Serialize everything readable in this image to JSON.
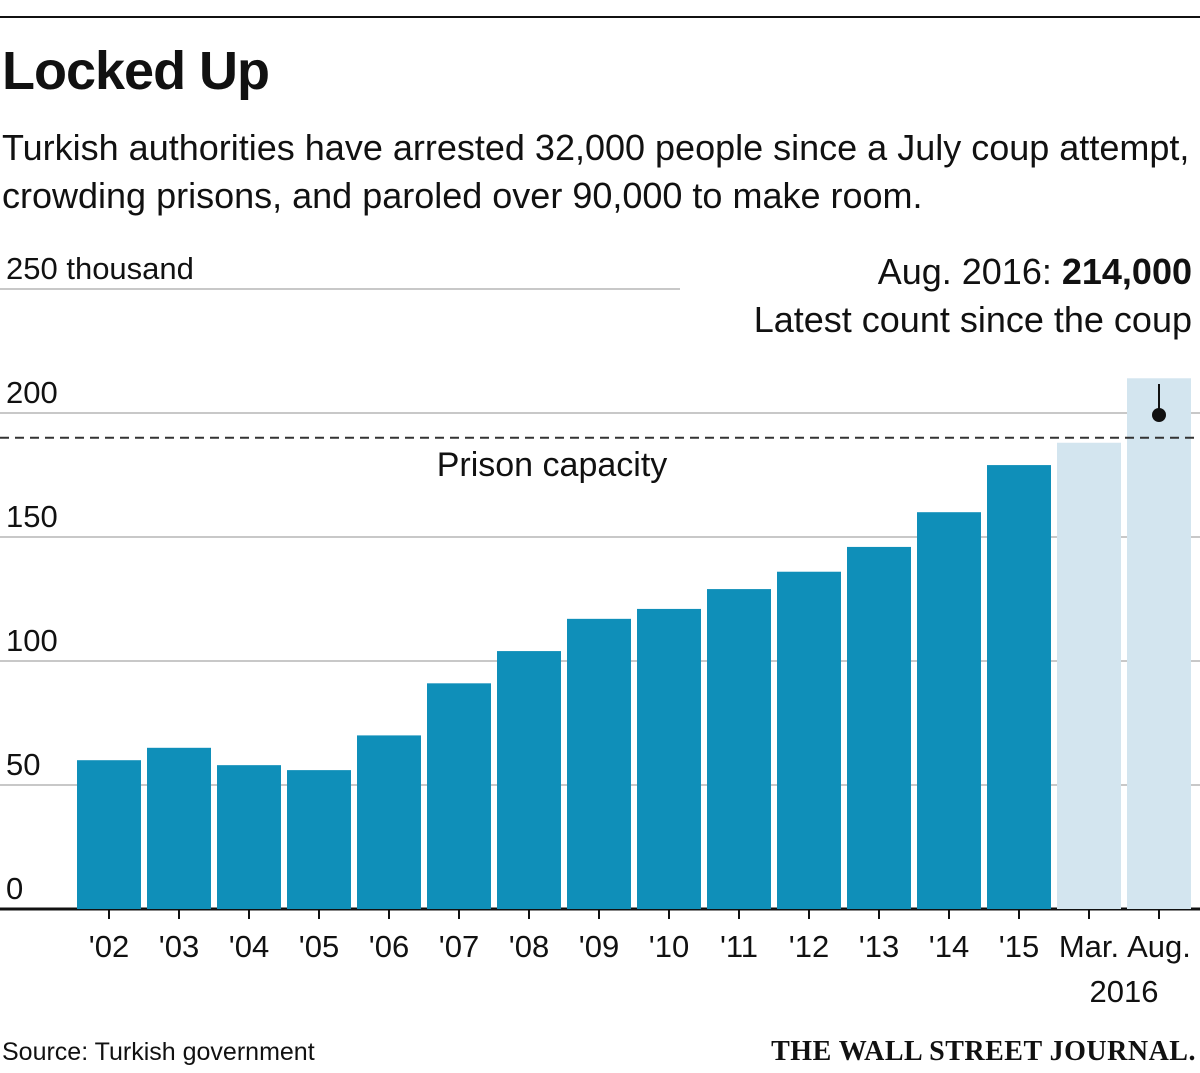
{
  "header": {
    "title": "Locked Up",
    "subtitle": "Turkish authorities have arrested 32,000 people since a July coup attempt, crowding prisons, and paroled over 90,000 to make room."
  },
  "footer": {
    "source": "Source: Turkish government",
    "logo_text": "THE WALL STREET JOURNAL."
  },
  "chart_data": {
    "type": "bar",
    "unit_label": "250 thousand",
    "categories": [
      "'02",
      "'03",
      "'04",
      "'05",
      "'06",
      "'07",
      "'08",
      "'09",
      "'10",
      "'11",
      "'12",
      "'13",
      "'14",
      "'15",
      "Mar.",
      "Aug."
    ],
    "category_sublabel": "2016",
    "values": [
      60,
      65,
      58,
      56,
      70,
      91,
      104,
      117,
      121,
      129,
      136,
      146,
      160,
      179,
      188,
      214
    ],
    "highlight_categories": [
      "Mar.",
      "Aug."
    ],
    "ylim": [
      0,
      250
    ],
    "yticks": [
      0,
      50,
      100,
      150,
      200,
      250
    ],
    "ytick_labels": [
      "0",
      "50",
      "100",
      "150",
      "200",
      "250 thousand"
    ],
    "capacity": {
      "value": 190,
      "label": "Prison capacity"
    },
    "annotation": {
      "prefix": "Aug. 2016: ",
      "value_text": "214,000",
      "line2": "Latest count since the coup"
    },
    "colors": {
      "bar": "#0f8fb9",
      "highlight": "#d3e5ef",
      "grid": "#c8c8c8",
      "axis": "#111111"
    }
  }
}
